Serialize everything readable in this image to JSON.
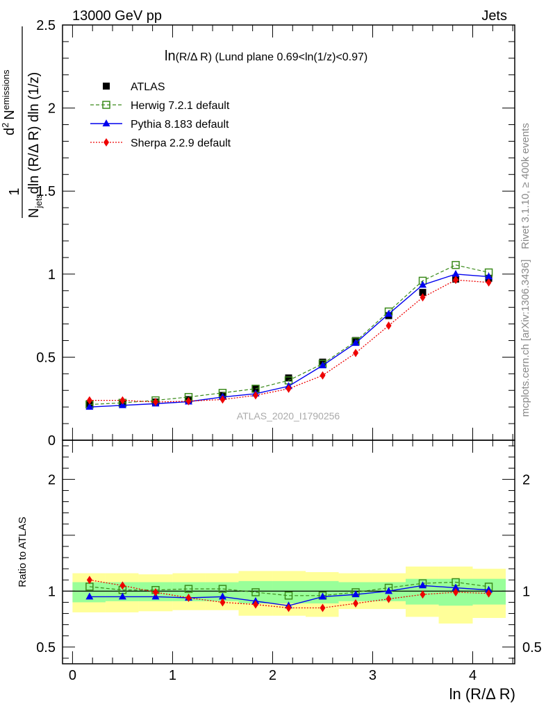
{
  "header": {
    "energy": "13000 GeV pp",
    "category": "Jets"
  },
  "side_labels": {
    "rivet": "Rivet 3.1.10, ≥ 400k events",
    "mcplots": "mcplots.cern.ch [arXiv:1306.3436]"
  },
  "watermark": "ATLAS_2020_I1790256",
  "chart_data": [
    {
      "type": "line",
      "title": "ln(R/Δ R) (Lund plane 0.69<ln(1/z)<0.97)",
      "title_parts": {
        "main": "ln",
        "sub": "(R/Δ R)",
        "rest": " (Lund plane 0.69<ln(1/z)<0.97)"
      },
      "ylabel_parts": {
        "one": "1",
        "n": "N",
        "jets": "jets",
        "denom_rest": "dln (R/Δ R) dln (1/z)",
        "d2": "d",
        "sup2": "2",
        "nem": "N",
        "emissions": "emissions"
      },
      "ylim": [
        0,
        2.5
      ],
      "xlim": [
        -0.1,
        4.42
      ],
      "y_ticks": [
        {
          "value": 0,
          "label": "0"
        },
        {
          "value": 0.5,
          "label": "0.5"
        },
        {
          "value": 1,
          "label": "1"
        },
        {
          "value": 1.5,
          "label": "1.5"
        },
        {
          "value": 2,
          "label": "2"
        },
        {
          "value": 2.5,
          "label": "2.5"
        }
      ],
      "x": [
        0.17,
        0.5,
        0.83,
        1.16,
        1.5,
        1.83,
        2.16,
        2.5,
        2.83,
        3.16,
        3.5,
        3.83,
        4.16
      ],
      "series": [
        {
          "name": "ATLAS",
          "style": "data",
          "color": "#000000",
          "values": [
            0.22,
            0.22,
            0.23,
            0.245,
            0.27,
            0.31,
            0.375,
            0.47,
            0.6,
            0.75,
            0.89,
            0.97,
            0.975
          ]
        },
        {
          "name": "Herwig 7.2.1 default",
          "style": "herwig",
          "color": "#3a8a1a",
          "values": [
            0.215,
            0.225,
            0.24,
            0.26,
            0.285,
            0.31,
            0.36,
            0.46,
            0.595,
            0.775,
            0.96,
            1.055,
            1.01
          ]
        },
        {
          "name": "Pythia 8.183 default",
          "style": "pythia",
          "color": "#0000ee",
          "values": [
            0.2,
            0.21,
            0.22,
            0.232,
            0.26,
            0.28,
            0.325,
            0.45,
            0.585,
            0.76,
            0.935,
            1.0,
            0.985
          ]
        },
        {
          "name": "Sherpa 2.2.9 default",
          "style": "sherpa",
          "color": "#ee0000",
          "values": [
            0.24,
            0.24,
            0.23,
            0.235,
            0.245,
            0.27,
            0.31,
            0.39,
            0.525,
            0.69,
            0.86,
            0.965,
            0.95
          ]
        }
      ]
    },
    {
      "type": "line",
      "ylabel": "Ratio to ATLAS",
      "xlabel": "ln (R/Δ R)",
      "ylim": [
        0.35,
        2.35
      ],
      "xlim": [
        -0.1,
        4.42
      ],
      "y_ticks": [
        {
          "value": 0.5,
          "label": "0.5"
        },
        {
          "value": 1,
          "label": "1"
        },
        {
          "value": 2,
          "label": "2"
        }
      ],
      "x_ticks": [
        {
          "value": 0,
          "label": "0"
        },
        {
          "value": 1,
          "label": "1"
        },
        {
          "value": 2,
          "label": "2"
        },
        {
          "value": 3,
          "label": "3"
        },
        {
          "value": 4,
          "label": "4"
        }
      ],
      "x": [
        0.17,
        0.5,
        0.83,
        1.16,
        1.5,
        1.83,
        2.16,
        2.5,
        2.83,
        3.16,
        3.5,
        3.83,
        4.16
      ],
      "bins": [
        0,
        0.33,
        0.66,
        1.0,
        1.33,
        1.66,
        2.0,
        2.33,
        2.66,
        3.0,
        3.33,
        3.66,
        4.0,
        4.33
      ],
      "bands": {
        "yellow_color": "#ffff99",
        "green_color": "#99ff99",
        "yellow": [
          [
            0.81,
            1.16
          ],
          [
            0.81,
            1.16
          ],
          [
            0.82,
            1.15
          ],
          [
            0.83,
            1.16
          ],
          [
            0.83,
            1.16
          ],
          [
            0.78,
            1.18
          ],
          [
            0.78,
            1.18
          ],
          [
            0.77,
            1.17
          ],
          [
            0.84,
            1.16
          ],
          [
            0.84,
            1.16
          ],
          [
            0.77,
            1.22
          ],
          [
            0.71,
            1.22
          ],
          [
            0.76,
            1.2
          ]
        ],
        "green": [
          [
            0.9,
            1.08
          ],
          [
            0.91,
            1.08
          ],
          [
            0.91,
            1.08
          ],
          [
            0.91,
            1.08
          ],
          [
            0.91,
            1.08
          ],
          [
            0.89,
            1.09
          ],
          [
            0.89,
            1.09
          ],
          [
            0.89,
            1.09
          ],
          [
            0.91,
            1.08
          ],
          [
            0.91,
            1.08
          ],
          [
            0.88,
            1.11
          ],
          [
            0.87,
            1.11
          ],
          [
            0.88,
            1.11
          ]
        ]
      },
      "series": [
        {
          "name": "ATLAS",
          "style": "ratio-line",
          "color": "#000000",
          "values": [
            1,
            1,
            1,
            1,
            1,
            1,
            1,
            1,
            1,
            1,
            1,
            1,
            1
          ]
        },
        {
          "name": "Herwig 7.2.1 default",
          "style": "herwig",
          "color": "#3a8a1a",
          "values": [
            1.04,
            1.01,
            1.01,
            1.02,
            1.02,
            0.99,
            0.96,
            0.96,
            0.99,
            1.03,
            1.07,
            1.08,
            1.04
          ]
        },
        {
          "name": "Pythia 8.183 default",
          "style": "pythia",
          "color": "#0000ee",
          "values": [
            0.95,
            0.95,
            0.95,
            0.94,
            0.95,
            0.91,
            0.87,
            0.95,
            0.97,
            1.0,
            1.05,
            1.03,
            1.01
          ]
        },
        {
          "name": "Sherpa 2.2.9 default",
          "style": "sherpa",
          "color": "#ee0000",
          "values": [
            1.1,
            1.05,
            0.99,
            0.94,
            0.9,
            0.88,
            0.85,
            0.85,
            0.89,
            0.93,
            0.97,
            0.99,
            0.98
          ]
        }
      ]
    }
  ]
}
